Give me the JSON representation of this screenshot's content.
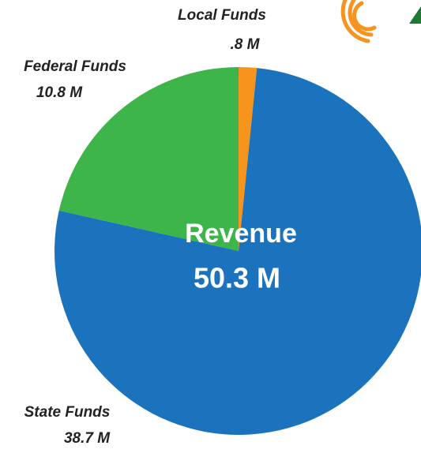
{
  "chart_data": {
    "type": "pie",
    "categories": [
      "Local Funds",
      "State Funds",
      "Federal Funds"
    ],
    "values": [
      0.8,
      38.7,
      10.8
    ],
    "value_labels": [
      ".8 M",
      "38.7 M",
      "10.8 M"
    ],
    "colors": [
      "#f7941d",
      "#1b73bd",
      "#3db54a"
    ],
    "center_title": "Revenue",
    "center_total": "50.3 M"
  }
}
